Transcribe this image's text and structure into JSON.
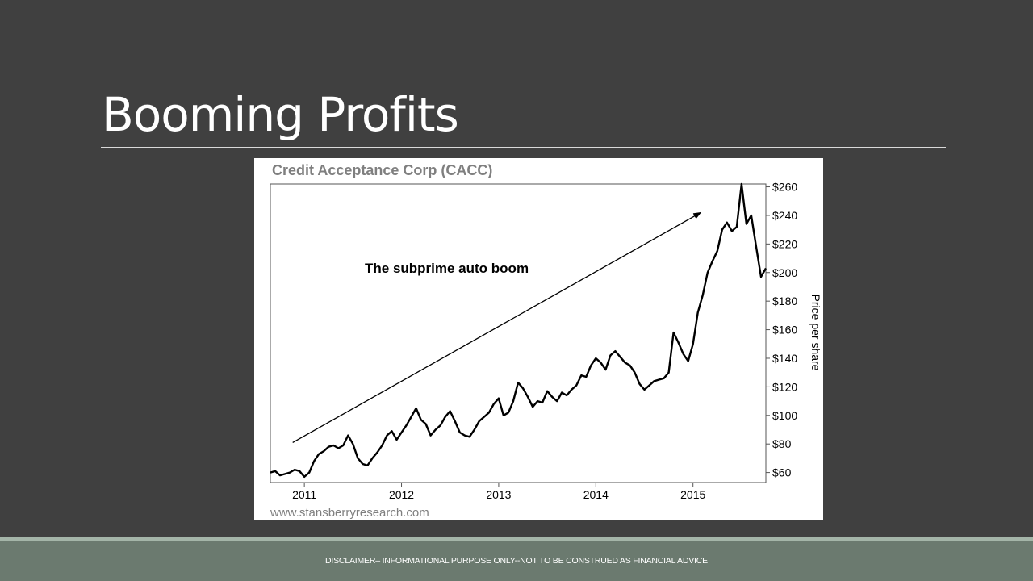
{
  "slide": {
    "title": "Booming Profits",
    "disclaimer": "DISCLAIMER– INFORMATIONAL PURPOSE ONLY--NOT TO BE CONSTRUED AS FINANCIAL ADVICE"
  },
  "colors": {
    "background": "#404040",
    "footer": "#6b7a6f",
    "footer_stripe": "#a4b5a8",
    "chart_title": "#7f7f7f",
    "line": "#000000"
  },
  "chart_data": {
    "type": "line",
    "title": "Credit Acceptance Corp (CACC)",
    "ylabel": "Price per share",
    "xlabel": "",
    "annotation": "The subprime auto boom",
    "source": "www.stansberryresearch.com",
    "y_axis_side": "right",
    "grid": false,
    "xlim": [
      2010.65,
      2015.75
    ],
    "ylim": [
      53,
      262
    ],
    "x_ticks": [
      2011,
      2012,
      2013,
      2014,
      2015
    ],
    "x_tick_labels": [
      "2011",
      "2012",
      "2013",
      "2014",
      "2015"
    ],
    "y_ticks": [
      60,
      80,
      100,
      120,
      140,
      160,
      180,
      200,
      220,
      240,
      260
    ],
    "y_tick_labels": [
      "$60",
      "$80",
      "$100",
      "$120",
      "$140",
      "$160",
      "$180",
      "$200",
      "$220",
      "$240",
      "$260"
    ],
    "trend_arrow": {
      "from": [
        2010.88,
        81
      ],
      "to": [
        2015.08,
        242
      ]
    },
    "series": [
      {
        "x": [
          2010.65,
          2010.7,
          2010.75,
          2010.8,
          2010.85,
          2010.9,
          2010.95,
          2011.0,
          2011.05,
          2011.1,
          2011.15,
          2011.2,
          2011.25,
          2011.3,
          2011.35,
          2011.4,
          2011.45,
          2011.5,
          2011.55,
          2011.6,
          2011.65,
          2011.7,
          2011.75,
          2011.8,
          2011.85,
          2011.9,
          2011.95,
          2012.0,
          2012.05,
          2012.1,
          2012.15,
          2012.2,
          2012.25,
          2012.3,
          2012.35,
          2012.4,
          2012.45,
          2012.5,
          2012.55,
          2012.6,
          2012.65,
          2012.7,
          2012.75,
          2012.8,
          2012.85,
          2012.9,
          2012.95,
          2013.0,
          2013.05,
          2013.1,
          2013.15,
          2013.2,
          2013.25,
          2013.3,
          2013.35,
          2013.4,
          2013.45,
          2013.5,
          2013.55,
          2013.6,
          2013.65,
          2013.7,
          2013.75,
          2013.8,
          2013.85,
          2013.9,
          2013.95,
          2014.0,
          2014.05,
          2014.1,
          2014.15,
          2014.2,
          2014.25,
          2014.3,
          2014.35,
          2014.4,
          2014.45,
          2014.5,
          2014.55,
          2014.6,
          2014.65,
          2014.7,
          2014.75,
          2014.8,
          2014.85,
          2014.9,
          2014.95,
          2015.0,
          2015.05,
          2015.1,
          2015.15,
          2015.2,
          2015.25,
          2015.3,
          2015.35,
          2015.4,
          2015.45,
          2015.5,
          2015.55,
          2015.6,
          2015.65,
          2015.7,
          2015.75
        ],
        "y": [
          60,
          61,
          58,
          59,
          60,
          62,
          61,
          57,
          60,
          68,
          73,
          75,
          78,
          79,
          77,
          79,
          86,
          80,
          70,
          66,
          65,
          70,
          74,
          79,
          86,
          89,
          83,
          88,
          93,
          99,
          105,
          97,
          94,
          86,
          90,
          93,
          99,
          103,
          96,
          88,
          86,
          85,
          90,
          96,
          99,
          102,
          108,
          112,
          100,
          102,
          110,
          123,
          119,
          113,
          106,
          110,
          109,
          117,
          113,
          110,
          116,
          114,
          118,
          121,
          128,
          127,
          135,
          140,
          137,
          132,
          142,
          145,
          141,
          137,
          135,
          130,
          122,
          118,
          121,
          124,
          125,
          126,
          130,
          158,
          151,
          143,
          138,
          150,
          172,
          184,
          200,
          208,
          215,
          230,
          235,
          229,
          232,
          262,
          234,
          240,
          218,
          197,
          203
        ]
      }
    ]
  }
}
